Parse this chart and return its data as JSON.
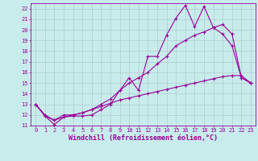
{
  "title": "",
  "xlabel": "Windchill (Refroidissement éolien,°C)",
  "ylabel": "",
  "bg_color": "#c8ecec",
  "grid_color": "#b0cccc",
  "line_color": "#990099",
  "xlim": [
    -0.5,
    23.5
  ],
  "ylim": [
    11.0,
    22.5
  ],
  "yticks": [
    11,
    12,
    13,
    14,
    15,
    16,
    17,
    18,
    19,
    20,
    21,
    22
  ],
  "xticks": [
    0,
    1,
    2,
    3,
    4,
    5,
    6,
    7,
    8,
    9,
    10,
    11,
    12,
    13,
    14,
    15,
    16,
    17,
    18,
    19,
    20,
    21,
    22,
    23
  ],
  "line1_x": [
    0,
    1,
    2,
    3,
    4,
    5,
    6,
    7,
    8,
    9,
    10,
    11,
    12,
    13,
    14,
    15,
    16,
    17,
    18,
    19,
    20,
    21,
    22,
    23
  ],
  "line1_y": [
    13.0,
    11.9,
    11.1,
    11.8,
    11.9,
    11.9,
    12.0,
    12.5,
    13.0,
    14.3,
    15.5,
    14.3,
    17.5,
    17.5,
    19.5,
    21.1,
    22.3,
    20.3,
    22.2,
    20.2,
    20.5,
    19.6,
    15.5,
    15.0
  ],
  "line2_x": [
    0,
    1,
    2,
    3,
    4,
    5,
    6,
    7,
    8,
    9,
    10,
    11,
    12,
    13,
    14,
    15,
    16,
    17,
    18,
    19,
    20,
    21,
    22,
    23
  ],
  "line2_y": [
    13.0,
    11.9,
    11.5,
    12.0,
    12.0,
    12.2,
    12.5,
    13.0,
    13.5,
    14.3,
    15.0,
    15.5,
    16.0,
    16.8,
    17.5,
    18.5,
    19.0,
    19.5,
    19.8,
    20.2,
    19.6,
    18.5,
    15.5,
    15.0
  ],
  "line3_x": [
    0,
    1,
    2,
    3,
    4,
    5,
    6,
    7,
    8,
    9,
    10,
    11,
    12,
    13,
    14,
    15,
    16,
    17,
    18,
    19,
    20,
    21,
    22,
    23
  ],
  "line3_y": [
    13.0,
    12.0,
    11.5,
    11.8,
    12.0,
    12.2,
    12.5,
    12.8,
    13.1,
    13.4,
    13.6,
    13.8,
    14.0,
    14.2,
    14.4,
    14.6,
    14.8,
    15.0,
    15.2,
    15.4,
    15.6,
    15.7,
    15.7,
    15.0
  ],
  "marker": "+",
  "markersize": 3,
  "linewidth": 0.8,
  "tick_fontsize": 5,
  "label_fontsize": 6,
  "figsize": [
    3.2,
    2.0
  ],
  "dpi": 100
}
